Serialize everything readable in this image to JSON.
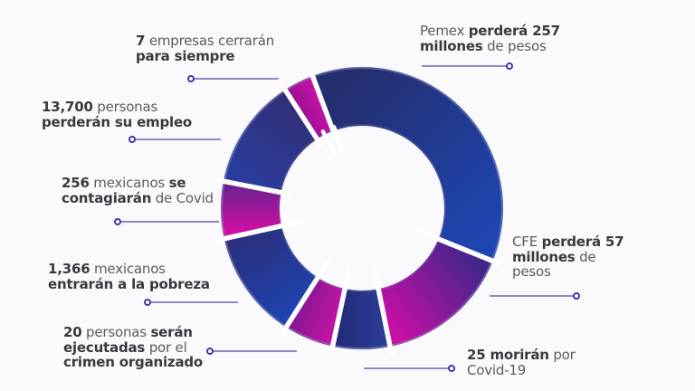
{
  "background": "#fafafc",
  "colors": {
    "text_bold": "#3a3942",
    "text_regular": "#5b5a63",
    "leader_line": "#8d87c8",
    "leader_dot": "#4334a8",
    "gap": "#ffffff"
  },
  "chart_data": {
    "type": "pie",
    "subtype": "donut",
    "title": "",
    "center": [
      400,
      230
    ],
    "outer_radius": 156,
    "inner_radius": 91,
    "legend_position": "callout-labels",
    "segments": [
      {
        "id": "pemex",
        "label": "Pemex perderá 257 millones de pesos",
        "value": 257,
        "unit": "millones de pesos",
        "start_deg": 339.5,
        "end_deg": 472,
        "color_start": "#252e6e",
        "color_end": "#1e45b0"
      },
      {
        "id": "cfe",
        "label": "CFE perderá 57 millones de pesos",
        "value": 57,
        "unit": "millones de pesos",
        "start_deg": 112,
        "end_deg": 168.5,
        "color_start": "#44258c",
        "color_end": "#c60fa5"
      },
      {
        "id": "covid-muertes",
        "label": "25 morirán por Covid-19",
        "value": 25,
        "unit": "personas",
        "start_deg": 168.5,
        "end_deg": 192,
        "color_start": "#2c3b96",
        "color_end": "#222c78"
      },
      {
        "id": "ejecutados",
        "label": "20 personas serán ejecutadas por el crimen organizado",
        "value": 20,
        "unit": "personas",
        "start_deg": 192,
        "end_deg": 212.5,
        "color_start": "#c214a6",
        "color_end": "#8a1793"
      },
      {
        "id": "pobreza",
        "label": "1,366 mexicanos entrarán a la pobreza",
        "value": 1366,
        "unit": "mexicanos",
        "start_deg": 212.5,
        "end_deg": 257.5,
        "color_start": "#1e43ae",
        "color_end": "#2b2f7d"
      },
      {
        "id": "contagios",
        "label": "256 mexicanos se contagiarán de Covid",
        "value": 256,
        "unit": "mexicanos",
        "start_deg": 257.5,
        "end_deg": 281,
        "color_start": "#d30fa7",
        "color_end": "#6e2090"
      },
      {
        "id": "empleo",
        "label": "13,700 personas perderán su empleo",
        "value": 13700,
        "unit": "personas",
        "start_deg": 281,
        "end_deg": 327,
        "color_start": "#2a3d9d",
        "color_end": "#303079"
      },
      {
        "id": "empresas",
        "label": "7 empresas cerrarán para siempre",
        "value": 7,
        "unit": "empresas",
        "start_deg": 327,
        "end_deg": 339.5,
        "color_start": "#9c0f93",
        "color_end": "#c712a8"
      }
    ],
    "gap_angles": [
      339.5,
      112,
      168.5,
      192,
      212.5,
      257.5,
      281,
      327
    ],
    "shine_angles": [
      333,
      341,
      112,
      168.5,
      192,
      212.5,
      257.5
    ]
  },
  "labels": {
    "empresas": {
      "l1": [
        "7",
        " empresas cerrarán"
      ],
      "l2": [
        "para siempre"
      ]
    },
    "pemex": {
      "l1": [
        "Pemex ",
        "perderá 257"
      ],
      "l2": [
        "millones",
        " de pesos"
      ]
    },
    "empleo": {
      "l1": [
        "13,700",
        " personas"
      ],
      "l2": [
        "perderán su empleo"
      ]
    },
    "contagios": {
      "l1": [
        "256",
        " mexicanos ",
        "se"
      ],
      "l2": [
        "contagiarán",
        " de Covid"
      ]
    },
    "pobreza": {
      "l1": [
        "1,366",
        " mexicanos"
      ],
      "l2": [
        "entrarán a la pobreza"
      ]
    },
    "ejecutados": {
      "l1": [
        "20",
        " personas ",
        "serán"
      ],
      "l2": [
        "ejecutadas",
        " por el"
      ],
      "l3": [
        "crimen organizado"
      ]
    },
    "cfe": {
      "l1": [
        "CFE ",
        "perderá 57"
      ],
      "l2": [
        "millones",
        " de"
      ],
      "l3": [
        "pesos"
      ]
    },
    "covid25": {
      "l1": [
        "25 morirán",
        " por"
      ],
      "l2": [
        "Covid-19"
      ]
    }
  }
}
